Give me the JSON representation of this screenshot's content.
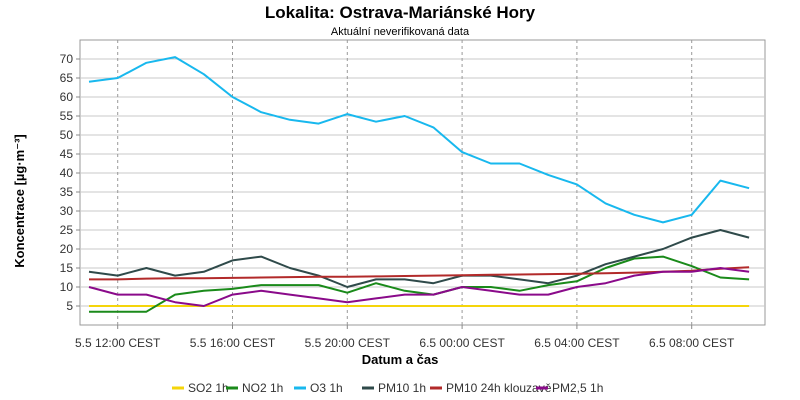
{
  "chart_data": {
    "type": "line",
    "title": "Lokalita: Ostrava-Mariánské Hory",
    "subtitle": "Aktuální neverifikovaná data",
    "xlabel": "Datum a čas",
    "ylabel": "Koncentrace [µg·m⁻³]",
    "ylim": [
      0,
      75
    ],
    "yticks": [
      5,
      10,
      15,
      20,
      25,
      30,
      35,
      40,
      45,
      50,
      55,
      60,
      65,
      70
    ],
    "x_hours": [
      0,
      1,
      2,
      3,
      4,
      5,
      6,
      7,
      8,
      9,
      10,
      11,
      12,
      13,
      14,
      15,
      16,
      17,
      18,
      19,
      20,
      21,
      22,
      23
    ],
    "x_ticks": [
      {
        "label": "5.5 12:00 CEST",
        "hour": 0
      },
      {
        "label": "5.5 16:00 CEST",
        "hour": 4
      },
      {
        "label": "5.5 20:00 CEST",
        "hour": 8
      },
      {
        "label": "6.5 00:00 CEST",
        "hour": 12
      },
      {
        "label": "6.5 04:00 CEST",
        "hour": 16
      },
      {
        "label": "6.5 08:00 CEST",
        "hour": 20
      }
    ],
    "grid": true,
    "legend_position": "bottom",
    "series": [
      {
        "name": "SO2 1h",
        "color": "#f5d50a",
        "values": [
          5,
          5,
          5,
          5,
          5,
          5,
          5,
          5,
          5,
          5,
          5,
          5,
          5,
          5,
          5,
          5,
          5,
          5,
          5,
          5,
          5,
          5,
          5,
          5
        ]
      },
      {
        "name": "NO2 1h",
        "color": "#1a8a1a",
        "values": [
          3.5,
          3.5,
          3.5,
          8,
          9,
          9.5,
          10.5,
          10.5,
          10.5,
          8.5,
          11,
          9,
          8,
          10,
          10,
          9,
          10.5,
          11.5,
          15,
          17.5,
          18,
          15.5,
          12.5,
          12
        ]
      },
      {
        "name": "O3 1h",
        "color": "#18b8ee",
        "values": [
          64,
          65,
          69,
          70.5,
          66,
          60,
          56,
          54,
          53,
          55.5,
          53.5,
          55,
          52,
          45.5,
          42.5,
          42.5,
          39.5,
          37,
          32,
          29,
          27,
          29,
          38,
          36
        ]
      },
      {
        "name": "PM10 1h",
        "color": "#2f4a4a",
        "values": [
          14,
          13,
          15,
          13,
          14,
          17,
          18,
          15,
          13,
          10,
          12,
          12,
          11,
          13,
          13,
          12,
          11,
          13,
          16,
          18,
          20,
          23,
          25,
          23
        ]
      },
      {
        "name": "PM10 24h klouzavě",
        "color": "#b22a2a",
        "values": [
          12,
          12,
          12.2,
          12.3,
          12.3,
          12.4,
          12.5,
          12.6,
          12.7,
          12.7,
          12.8,
          12.9,
          13,
          13.1,
          13.2,
          13.3,
          13.4,
          13.5,
          13.6,
          13.8,
          14,
          14.3,
          14.8,
          15.2
        ]
      },
      {
        "name": "PM2,5 1h",
        "color": "#8a0a8a",
        "values": [
          10,
          8,
          8,
          6,
          5,
          8,
          9,
          8,
          7,
          6,
          7,
          8,
          8,
          10,
          9,
          8,
          8,
          10,
          11,
          13,
          14,
          14,
          15,
          14
        ]
      }
    ]
  }
}
